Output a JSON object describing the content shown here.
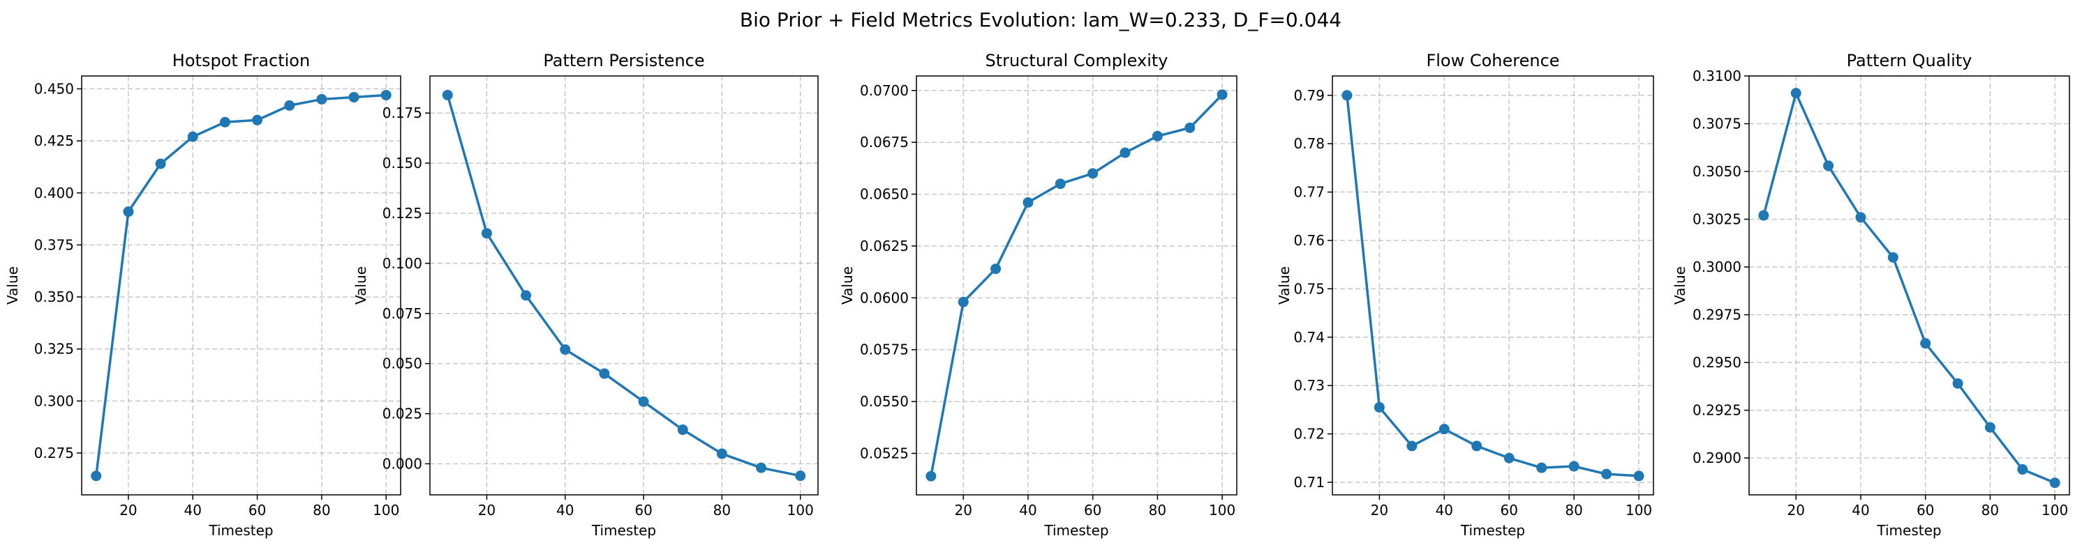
{
  "figure": {
    "suptitle": "Bio Prior + Field Metrics Evolution: lam_W=0.233, D_F=0.044"
  },
  "colors": {
    "series": "#1f77b4",
    "grid": "#b0b0b0"
  },
  "chart_data": [
    {
      "type": "line",
      "title": "Hotspot Fraction",
      "xlabel": "Timestep",
      "ylabel": "Value",
      "grid": true,
      "x": [
        10,
        20,
        30,
        40,
        50,
        60,
        70,
        80,
        90,
        100
      ],
      "values": [
        0.264,
        0.391,
        0.414,
        0.427,
        0.434,
        0.435,
        0.442,
        0.445,
        0.446,
        0.447
      ],
      "xlim": [
        5.5,
        104.5
      ],
      "ylim": [
        0.2549,
        0.4562
      ],
      "xticks": [
        20,
        40,
        60,
        80,
        100
      ],
      "xtick_labels": [
        "20",
        "40",
        "60",
        "80",
        "100"
      ],
      "yticks": [
        0.275,
        0.3,
        0.325,
        0.35,
        0.375,
        0.4,
        0.425,
        0.45
      ],
      "ytick_labels": [
        "0.275",
        "0.300",
        "0.325",
        "0.350",
        "0.375",
        "0.400",
        "0.425",
        "0.450"
      ]
    },
    {
      "type": "line",
      "title": "Pattern Persistence",
      "xlabel": "Timestep",
      "ylabel": "Value",
      "grid": true,
      "x": [
        10,
        20,
        30,
        40,
        50,
        60,
        70,
        80,
        90,
        100
      ],
      "values": [
        0.184,
        0.115,
        0.084,
        0.057,
        0.045,
        0.031,
        0.017,
        0.005,
        -0.002,
        -0.006
      ],
      "xlim": [
        5.5,
        104.5
      ],
      "ylim": [
        -0.0155,
        0.1935
      ],
      "xticks": [
        20,
        40,
        60,
        80,
        100
      ],
      "xtick_labels": [
        "20",
        "40",
        "60",
        "80",
        "100"
      ],
      "yticks": [
        0.0,
        0.025,
        0.05,
        0.075,
        0.1,
        0.125,
        0.15,
        0.175
      ],
      "ytick_labels": [
        "0.000",
        "0.025",
        "0.050",
        "0.075",
        "0.100",
        "0.125",
        "0.150",
        "0.175"
      ]
    },
    {
      "type": "line",
      "title": "Structural Complexity",
      "xlabel": "Timestep",
      "ylabel": "Value",
      "grid": true,
      "x": [
        10,
        20,
        30,
        40,
        50,
        60,
        70,
        80,
        90,
        100
      ],
      "values": [
        0.0514,
        0.0598,
        0.0614,
        0.0646,
        0.0655,
        0.066,
        0.067,
        0.0678,
        0.0682,
        0.0698
      ],
      "xlim": [
        5.5,
        104.5
      ],
      "ylim": [
        0.0505,
        0.0707
      ],
      "xticks": [
        20,
        40,
        60,
        80,
        100
      ],
      "xtick_labels": [
        "20",
        "40",
        "60",
        "80",
        "100"
      ],
      "yticks": [
        0.0525,
        0.055,
        0.0575,
        0.06,
        0.0625,
        0.065,
        0.0675,
        0.07
      ],
      "ytick_labels": [
        "0.0525",
        "0.0550",
        "0.0575",
        "0.0600",
        "0.0625",
        "0.0650",
        "0.0675",
        "0.0700"
      ]
    },
    {
      "type": "line",
      "title": "Flow Coherence",
      "xlabel": "Timestep",
      "ylabel": "Value",
      "grid": true,
      "x": [
        10,
        20,
        30,
        40,
        50,
        60,
        70,
        80,
        90,
        100
      ],
      "values": [
        0.79,
        0.7255,
        0.7175,
        0.721,
        0.7175,
        0.715,
        0.713,
        0.7133,
        0.7117,
        0.7113
      ],
      "xlim": [
        5.5,
        104.5
      ],
      "ylim": [
        0.7074,
        0.794
      ],
      "xticks": [
        20,
        40,
        60,
        80,
        100
      ],
      "xtick_labels": [
        "20",
        "40",
        "60",
        "80",
        "100"
      ],
      "yticks": [
        0.71,
        0.72,
        0.73,
        0.74,
        0.75,
        0.76,
        0.77,
        0.78,
        0.79
      ],
      "ytick_labels": [
        "0.71",
        "0.72",
        "0.73",
        "0.74",
        "0.75",
        "0.76",
        "0.77",
        "0.78",
        "0.79"
      ]
    },
    {
      "type": "line",
      "title": "Pattern Quality",
      "xlabel": "Timestep",
      "ylabel": "Value",
      "grid": true,
      "x": [
        10,
        20,
        30,
        40,
        50,
        60,
        70,
        80,
        90,
        100
      ],
      "values": [
        0.3027,
        0.3091,
        0.3053,
        0.3026,
        0.3005,
        0.296,
        0.2939,
        0.2916,
        0.2894,
        0.2887
      ],
      "xlim": [
        5.5,
        104.5
      ],
      "ylim": [
        0.28807,
        0.31
      ],
      "xticks": [
        20,
        40,
        60,
        80,
        100
      ],
      "xtick_labels": [
        "20",
        "40",
        "60",
        "80",
        "100"
      ],
      "yticks": [
        0.29,
        0.2925,
        0.295,
        0.2975,
        0.3,
        0.3025,
        0.305,
        0.3075,
        0.31
      ],
      "ytick_labels": [
        "0.2900",
        "0.2925",
        "0.2950",
        "0.2975",
        "0.3000",
        "0.3025",
        "0.3050",
        "0.3075",
        "0.3100"
      ]
    }
  ]
}
